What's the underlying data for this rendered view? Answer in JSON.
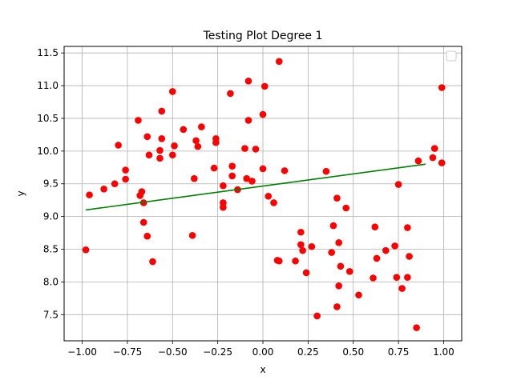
{
  "chart_data": {
    "type": "scatter",
    "title": "Testing Plot Degree 1",
    "xlabel": "x",
    "ylabel": "y",
    "xlim": [
      -1.1,
      1.1
    ],
    "ylim": [
      7.1,
      11.6
    ],
    "xticks": [
      -1.0,
      -0.75,
      -0.5,
      -0.25,
      0.0,
      0.25,
      0.5,
      0.75,
      1.0
    ],
    "xtick_labels": [
      "−1.00",
      "−0.75",
      "−0.50",
      "−0.25",
      "0.00",
      "0.25",
      "0.50",
      "0.75",
      "1.00"
    ],
    "yticks": [
      7.5,
      8.0,
      8.5,
      9.0,
      9.5,
      10.0,
      10.5,
      11.0,
      11.5
    ],
    "ytick_labels": [
      "7.5",
      "8.0",
      "8.5",
      "9.0",
      "9.5",
      "10.0",
      "10.5",
      "11.0",
      "11.5"
    ],
    "grid": true,
    "legend": "top-right (empty)",
    "scatter_color": "#ff0000",
    "line_color": "#008000",
    "points": [
      [
        -0.98,
        8.49
      ],
      [
        -0.96,
        9.33
      ],
      [
        -0.88,
        9.42
      ],
      [
        -0.82,
        9.5
      ],
      [
        -0.8,
        10.09
      ],
      [
        -0.76,
        9.71
      ],
      [
        -0.76,
        9.57
      ],
      [
        -0.69,
        10.47
      ],
      [
        -0.68,
        9.32
      ],
      [
        -0.67,
        9.38
      ],
      [
        -0.66,
        8.91
      ],
      [
        -0.66,
        9.21
      ],
      [
        -0.64,
        8.7
      ],
      [
        -0.64,
        10.22
      ],
      [
        -0.63,
        9.94
      ],
      [
        -0.61,
        8.31
      ],
      [
        -0.57,
        10.01
      ],
      [
        -0.57,
        9.89
      ],
      [
        -0.56,
        10.61
      ],
      [
        -0.56,
        10.19
      ],
      [
        -0.5,
        10.91
      ],
      [
        -0.5,
        9.94
      ],
      [
        -0.49,
        10.08
      ],
      [
        -0.44,
        10.33
      ],
      [
        -0.39,
        8.71
      ],
      [
        -0.38,
        9.58
      ],
      [
        -0.37,
        10.16
      ],
      [
        -0.36,
        10.07
      ],
      [
        -0.34,
        10.37
      ],
      [
        -0.27,
        9.74
      ],
      [
        -0.26,
        10.19
      ],
      [
        -0.26,
        10.13
      ],
      [
        -0.22,
        9.47
      ],
      [
        -0.22,
        9.21
      ],
      [
        -0.22,
        9.14
      ],
      [
        -0.18,
        10.88
      ],
      [
        -0.17,
        9.77
      ],
      [
        -0.17,
        9.62
      ],
      [
        -0.14,
        9.41
      ],
      [
        -0.1,
        10.04
      ],
      [
        -0.09,
        9.58
      ],
      [
        -0.08,
        11.07
      ],
      [
        -0.08,
        10.47
      ],
      [
        -0.06,
        9.54
      ],
      [
        -0.04,
        10.03
      ],
      [
        0.0,
        9.73
      ],
      [
        0.0,
        10.56
      ],
      [
        0.01,
        10.99
      ],
      [
        0.03,
        9.31
      ],
      [
        0.06,
        9.21
      ],
      [
        0.08,
        8.33
      ],
      [
        0.09,
        8.32
      ],
      [
        0.09,
        11.37
      ],
      [
        0.12,
        9.7
      ],
      [
        0.18,
        8.32
      ],
      [
        0.21,
        8.76
      ],
      [
        0.21,
        8.57
      ],
      [
        0.22,
        8.48
      ],
      [
        0.24,
        8.14
      ],
      [
        0.27,
        8.54
      ],
      [
        0.3,
        7.48
      ],
      [
        0.35,
        9.69
      ],
      [
        0.38,
        8.45
      ],
      [
        0.39,
        8.86
      ],
      [
        0.41,
        9.28
      ],
      [
        0.41,
        7.62
      ],
      [
        0.42,
        7.94
      ],
      [
        0.42,
        8.6
      ],
      [
        0.43,
        8.24
      ],
      [
        0.46,
        9.13
      ],
      [
        0.48,
        8.16
      ],
      [
        0.53,
        7.8
      ],
      [
        0.61,
        8.06
      ],
      [
        0.62,
        8.84
      ],
      [
        0.63,
        8.36
      ],
      [
        0.68,
        8.48
      ],
      [
        0.73,
        8.55
      ],
      [
        0.74,
        8.07
      ],
      [
        0.75,
        9.49
      ],
      [
        0.77,
        7.9
      ],
      [
        0.8,
        8.83
      ],
      [
        0.8,
        8.07
      ],
      [
        0.81,
        8.39
      ],
      [
        0.85,
        7.3
      ],
      [
        0.86,
        9.85
      ],
      [
        0.94,
        9.9
      ],
      [
        0.95,
        10.04
      ],
      [
        0.99,
        10.97
      ],
      [
        0.99,
        9.82
      ]
    ],
    "fit_line": {
      "x": [
        -0.98,
        0.9
      ],
      "y": [
        9.1,
        9.8
      ]
    }
  }
}
